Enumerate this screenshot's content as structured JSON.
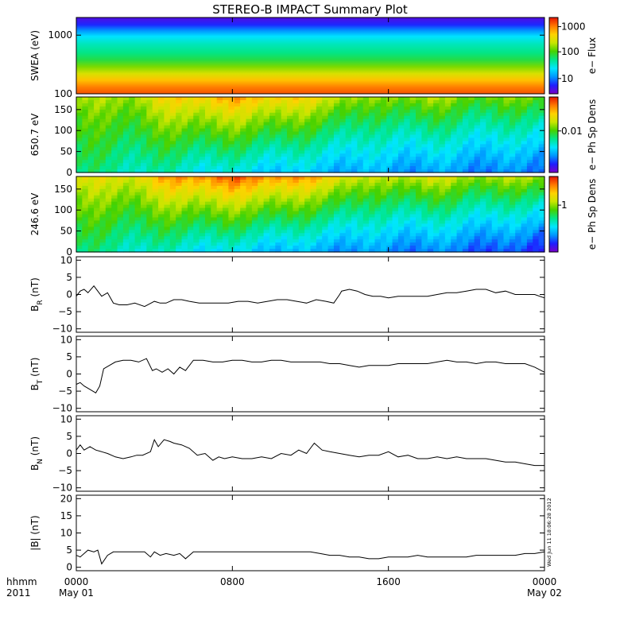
{
  "figure": {
    "title": "STEREO-B IMPACT Summary Plot",
    "stamp": "Wed Jun 11 18:06:28 2012"
  },
  "time_axis": {
    "hour_label": "hhmm",
    "year_label": "2011",
    "ticks": [
      {
        "time": "0000",
        "date": "May 01",
        "hour": 0
      },
      {
        "time": "0800",
        "date": "",
        "hour": 8
      },
      {
        "time": "1600",
        "date": "",
        "hour": 16
      },
      {
        "time": "0000",
        "date": "May 02",
        "hour": 24
      }
    ]
  },
  "colors": {
    "line": "#000000",
    "colormap": [
      "#7a00c8",
      "#1e1eff",
      "#0096ff",
      "#00e6ff",
      "#00e68c",
      "#46d200",
      "#c8e600",
      "#ffd200",
      "#ff7800",
      "#e61400"
    ]
  },
  "chart_data": [
    {
      "type": "heatmap",
      "ylabel": "SWEA (eV)",
      "scale": "log",
      "ylim": [
        100,
        2000
      ],
      "yticks": [
        {
          "v": 100,
          "label": "100"
        },
        {
          "v": 1000,
          "label": "1000"
        }
      ],
      "colorbar": {
        "label": "e− Flux",
        "ticks": [
          {
            "f": 0.2,
            "label": "10"
          },
          {
            "f": 0.55,
            "label": "100"
          },
          {
            "f": 0.88,
            "label": "1000"
          }
        ]
      },
      "profile": [
        {
          "e": 100,
          "f": 0.93
        },
        {
          "e": 130,
          "f": 0.88
        },
        {
          "e": 170,
          "f": 0.8
        },
        {
          "e": 220,
          "f": 0.7
        },
        {
          "e": 290,
          "f": 0.6
        },
        {
          "e": 380,
          "f": 0.5
        },
        {
          "e": 500,
          "f": 0.45
        },
        {
          "e": 700,
          "f": 0.4
        },
        {
          "e": 950,
          "f": 0.33
        },
        {
          "e": 1200,
          "f": 0.22
        },
        {
          "e": 1500,
          "f": 0.12
        },
        {
          "e": 2000,
          "f": 0.05
        }
      ]
    },
    {
      "type": "heatmap",
      "ylabel": "650.7 eV",
      "ylim": [
        0,
        180
      ],
      "yticks": [
        {
          "v": 0,
          "label": "0"
        },
        {
          "v": 50,
          "label": "50"
        },
        {
          "v": 100,
          "label": "100"
        },
        {
          "v": 150,
          "label": "150"
        }
      ],
      "colorbar": {
        "label": "e− Ph Sp Dens",
        "ticks": [
          {
            "f": 0.55,
            "label": "0.01"
          }
        ]
      },
      "top_band": [
        {
          "hour": 0,
          "f": 0.62
        },
        {
          "hour": 3,
          "f": 0.66
        },
        {
          "hour": 5,
          "f": 0.78
        },
        {
          "hour": 8,
          "f": 0.84
        },
        {
          "hour": 10.5,
          "f": 0.8
        },
        {
          "hour": 13,
          "f": 0.72
        },
        {
          "hour": 15,
          "f": 0.6
        },
        {
          "hour": 18,
          "f": 0.66
        },
        {
          "hour": 20,
          "f": 0.6
        },
        {
          "hour": 24,
          "f": 0.6
        }
      ],
      "bottom_band": [
        {
          "hour": 0,
          "f": 0.45
        },
        {
          "hour": 4,
          "f": 0.4
        },
        {
          "hour": 9,
          "f": 0.32
        },
        {
          "hour": 12,
          "f": 0.28
        },
        {
          "hour": 15,
          "f": 0.25
        },
        {
          "hour": 20,
          "f": 0.22
        },
        {
          "hour": 24,
          "f": 0.18
        }
      ]
    },
    {
      "type": "heatmap",
      "ylabel": "246.6 eV",
      "ylim": [
        0,
        180
      ],
      "yticks": [
        {
          "v": 0,
          "label": "0"
        },
        {
          "v": 50,
          "label": "50"
        },
        {
          "v": 100,
          "label": "100"
        },
        {
          "v": 150,
          "label": "150"
        }
      ],
      "colorbar": {
        "label": "e− Ph Sp Dens",
        "ticks": [
          {
            "f": 0.62,
            "label": "1"
          }
        ]
      },
      "top_band": [
        {
          "hour": 0,
          "f": 0.7
        },
        {
          "hour": 3,
          "f": 0.74
        },
        {
          "hour": 5,
          "f": 0.86
        },
        {
          "hour": 8,
          "f": 0.93
        },
        {
          "hour": 10.5,
          "f": 0.88
        },
        {
          "hour": 13,
          "f": 0.8
        },
        {
          "hour": 15,
          "f": 0.66
        },
        {
          "hour": 18,
          "f": 0.72
        },
        {
          "hour": 20,
          "f": 0.66
        },
        {
          "hour": 24,
          "f": 0.66
        }
      ],
      "bottom_band": [
        {
          "hour": 0,
          "f": 0.45
        },
        {
          "hour": 4,
          "f": 0.38
        },
        {
          "hour": 9,
          "f": 0.3
        },
        {
          "hour": 12,
          "f": 0.25
        },
        {
          "hour": 15,
          "f": 0.22
        },
        {
          "hour": 20,
          "f": 0.18
        },
        {
          "hour": 24,
          "f": 0.1
        }
      ]
    },
    {
      "type": "line",
      "ylabel": "B",
      "ysub": "R",
      "yunit": " (nT)",
      "ylim": [
        -11,
        11
      ],
      "yticks": [
        {
          "v": -10,
          "label": "−10"
        },
        {
          "v": -5,
          "label": "−5"
        },
        {
          "v": 0,
          "label": "0"
        },
        {
          "v": 5,
          "label": "5"
        },
        {
          "v": 10,
          "label": "10"
        }
      ],
      "x": [
        0,
        0.2,
        0.4,
        0.6,
        0.9,
        1.1,
        1.3,
        1.6,
        1.9,
        2.2,
        2.6,
        3.0,
        3.5,
        4.0,
        4.3,
        4.6,
        5.0,
        5.4,
        5.8,
        6.3,
        6.8,
        7.3,
        7.8,
        8.3,
        8.8,
        9.3,
        9.8,
        10.3,
        10.8,
        11.3,
        11.8,
        12.3,
        12.8,
        13.2,
        13.5,
        13.6,
        14.0,
        14.4,
        14.8,
        15.2,
        15.6,
        16.0,
        16.5,
        17.0,
        17.5,
        18.0,
        18.5,
        19.0,
        19.5,
        20.0,
        20.5,
        21.0,
        21.5,
        22.0,
        22.5,
        23.0,
        23.5,
        24.0
      ],
      "y": [
        -0.5,
        1.0,
        1.5,
        0.5,
        2.5,
        1.0,
        -0.5,
        0.5,
        -2.5,
        -3.0,
        -3.0,
        -2.5,
        -3.5,
        -2.0,
        -2.5,
        -2.5,
        -1.5,
        -1.5,
        -2.0,
        -2.5,
        -2.5,
        -2.5,
        -2.5,
        -2.0,
        -2.0,
        -2.5,
        -2.0,
        -1.5,
        -1.5,
        -2.0,
        -2.5,
        -1.5,
        -2.0,
        -2.5,
        0.0,
        1.0,
        1.5,
        1.0,
        0.0,
        -0.5,
        -0.5,
        -1.0,
        -0.5,
        -0.5,
        -0.5,
        -0.5,
        0.0,
        0.5,
        0.5,
        1.0,
        1.5,
        1.5,
        0.5,
        1.0,
        0.0,
        0.0,
        0.0,
        -1.0
      ]
    },
    {
      "type": "line",
      "ylabel": "B",
      "ysub": "T",
      "yunit": " (nT)",
      "ylim": [
        -11,
        11
      ],
      "yticks": [
        {
          "v": -10,
          "label": "−10"
        },
        {
          "v": -5,
          "label": "−5"
        },
        {
          "v": 0,
          "label": "0"
        },
        {
          "v": 5,
          "label": "5"
        },
        {
          "v": 10,
          "label": "10"
        }
      ],
      "x": [
        0,
        0.2,
        0.4,
        0.7,
        1.0,
        1.2,
        1.4,
        1.7,
        2.0,
        2.4,
        2.8,
        3.2,
        3.6,
        3.9,
        4.1,
        4.4,
        4.7,
        5.0,
        5.3,
        5.6,
        6.0,
        6.5,
        7.0,
        7.5,
        8.0,
        8.5,
        9.0,
        9.5,
        10.0,
        10.5,
        11.0,
        11.5,
        12.0,
        12.5,
        13.0,
        13.5,
        14.0,
        14.5,
        15.0,
        15.5,
        16.0,
        16.5,
        17.0,
        17.5,
        18.0,
        18.5,
        19.0,
        19.5,
        20.0,
        20.5,
        21.0,
        21.5,
        22.0,
        22.5,
        23.0,
        23.5,
        24.0
      ],
      "y": [
        -3.0,
        -2.5,
        -3.5,
        -4.5,
        -5.5,
        -3.5,
        1.5,
        2.5,
        3.5,
        4.0,
        4.0,
        3.5,
        4.5,
        1.0,
        1.5,
        0.5,
        1.5,
        0.0,
        2.0,
        1.0,
        4.0,
        4.0,
        3.5,
        3.5,
        4.0,
        4.0,
        3.5,
        3.5,
        4.0,
        4.0,
        3.5,
        3.5,
        3.5,
        3.5,
        3.0,
        3.0,
        2.5,
        2.0,
        2.5,
        2.5,
        2.5,
        3.0,
        3.0,
        3.0,
        3.0,
        3.5,
        4.0,
        3.5,
        3.5,
        3.0,
        3.5,
        3.5,
        3.0,
        3.0,
        3.0,
        2.0,
        0.5
      ]
    },
    {
      "type": "line",
      "ylabel": "B",
      "ysub": "N",
      "yunit": " (nT)",
      "ylim": [
        -11,
        11
      ],
      "yticks": [
        {
          "v": -10,
          "label": "−10"
        },
        {
          "v": -5,
          "label": "−5"
        },
        {
          "v": 0,
          "label": "0"
        },
        {
          "v": 5,
          "label": "5"
        },
        {
          "v": 10,
          "label": "10"
        }
      ],
      "x": [
        0,
        0.2,
        0.4,
        0.7,
        1.0,
        1.3,
        1.6,
        2.0,
        2.4,
        2.8,
        3.1,
        3.4,
        3.8,
        4.0,
        4.2,
        4.5,
        4.8,
        5.0,
        5.4,
        5.8,
        6.2,
        6.6,
        7.0,
        7.3,
        7.6,
        8.0,
        8.5,
        9.0,
        9.5,
        10.0,
        10.5,
        11.0,
        11.4,
        11.8,
        12.2,
        12.6,
        13.0,
        13.5,
        14.0,
        14.5,
        15.0,
        15.5,
        16.0,
        16.5,
        17.0,
        17.5,
        18.0,
        18.5,
        19.0,
        19.5,
        20.0,
        20.5,
        21.0,
        21.5,
        22.0,
        22.5,
        23.0,
        23.5,
        24.0
      ],
      "y": [
        1.0,
        2.5,
        1.0,
        2.0,
        1.0,
        0.5,
        0.0,
        -1.0,
        -1.5,
        -1.0,
        -0.5,
        -0.5,
        0.5,
        4.0,
        2.0,
        4.0,
        3.5,
        3.0,
        2.5,
        1.5,
        -0.5,
        0.0,
        -2.0,
        -1.0,
        -1.5,
        -1.0,
        -1.5,
        -1.5,
        -1.0,
        -1.5,
        0.0,
        -0.5,
        1.0,
        0.0,
        3.0,
        1.0,
        0.5,
        0.0,
        -0.5,
        -1.0,
        -0.5,
        -0.5,
        0.5,
        -1.0,
        -0.5,
        -1.5,
        -1.5,
        -1.0,
        -1.5,
        -1.0,
        -1.5,
        -1.5,
        -1.5,
        -2.0,
        -2.5,
        -2.5,
        -3.0,
        -3.5,
        -3.5
      ]
    },
    {
      "type": "line",
      "ylabel": "|B|",
      "ysub": "",
      "yunit": " (nT)",
      "ylim": [
        -1,
        21
      ],
      "yticks": [
        {
          "v": 0,
          "label": "0"
        },
        {
          "v": 5,
          "label": "5"
        },
        {
          "v": 10,
          "label": "10"
        },
        {
          "v": 15,
          "label": "15"
        },
        {
          "v": 20,
          "label": "20"
        }
      ],
      "x": [
        0,
        0.2,
        0.4,
        0.6,
        0.9,
        1.1,
        1.3,
        1.6,
        1.9,
        2.3,
        2.7,
        3.1,
        3.5,
        3.8,
        4.0,
        4.3,
        4.6,
        5.0,
        5.3,
        5.6,
        6.0,
        6.5,
        7.0,
        7.5,
        8.0,
        8.5,
        9.0,
        9.5,
        10.0,
        10.5,
        11.0,
        11.5,
        12.0,
        12.5,
        13.0,
        13.5,
        14.0,
        14.5,
        15.0,
        15.5,
        16.0,
        16.5,
        17.0,
        17.5,
        18.0,
        18.5,
        19.0,
        19.5,
        20.0,
        20.5,
        21.0,
        21.5,
        22.0,
        22.5,
        23.0,
        23.5,
        24.0
      ],
      "y": [
        3.5,
        3.0,
        4.0,
        5.0,
        4.5,
        5.0,
        1.0,
        3.5,
        4.5,
        4.5,
        4.5,
        4.5,
        4.5,
        3.0,
        4.5,
        3.5,
        4.0,
        3.5,
        4.0,
        2.5,
        4.5,
        4.5,
        4.5,
        4.5,
        4.5,
        4.5,
        4.5,
        4.5,
        4.5,
        4.5,
        4.5,
        4.5,
        4.5,
        4.0,
        3.5,
        3.5,
        3.0,
        3.0,
        2.5,
        2.5,
        3.0,
        3.0,
        3.0,
        3.5,
        3.0,
        3.0,
        3.0,
        3.0,
        3.0,
        3.5,
        3.5,
        3.5,
        3.5,
        3.5,
        4.0,
        4.0,
        4.5
      ]
    }
  ]
}
